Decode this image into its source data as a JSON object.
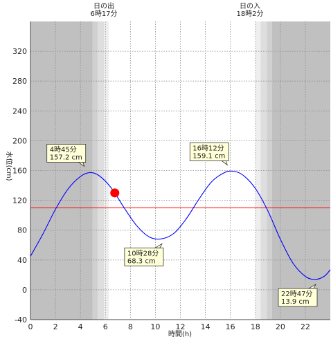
{
  "chart_data": {
    "type": "line",
    "xlabel": "時間(h)",
    "ylabel": "水位(cm)",
    "xlim": [
      0,
      24
    ],
    "ylim": [
      -40,
      360
    ],
    "x_ticks": [
      0,
      2,
      4,
      6,
      8,
      10,
      12,
      14,
      16,
      18,
      20,
      22
    ],
    "y_ticks": [
      -40,
      0,
      40,
      80,
      120,
      160,
      200,
      240,
      280,
      320
    ],
    "grid": true,
    "series": [
      {
        "color": "#0000ff",
        "x": [
          0,
          1,
          2,
          3,
          4,
          4.75,
          5.5,
          6.5,
          7.5,
          8.5,
          9.5,
          10.47,
          11.5,
          12.5,
          13.5,
          14.5,
          15.5,
          16.2,
          17,
          18,
          19,
          20,
          21,
          22,
          22.78,
          23.5,
          24
        ],
        "y": [
          45,
          75,
          108,
          135,
          152,
          157.2,
          153,
          136,
          110,
          86,
          71,
          68.3,
          76,
          96,
          122,
          145,
          157,
          159.1,
          154,
          136,
          106,
          68,
          36,
          18,
          13.9,
          18,
          27
        ]
      }
    ],
    "reference_line": {
      "y": 110,
      "color": "#ff0000"
    },
    "current_point": {
      "x": 6.75,
      "y": 130,
      "color": "#ff0000"
    },
    "sunrise": {
      "label_line1": "日の出",
      "label_line2": "6時17分",
      "x": 6.28
    },
    "sunset": {
      "label_line1": "日の入",
      "label_line2": "18時2分",
      "x": 18.03
    },
    "night_color": "#c0c0c0",
    "twilight_color": "#dedede",
    "annotations": [
      {
        "time": "4時45分",
        "value": "157.2 cm",
        "x": 4.75,
        "y": 157.2
      },
      {
        "time": "10時28分",
        "value": "68.3 cm",
        "x": 10.47,
        "y": 68.3
      },
      {
        "time": "16時12分",
        "value": "159.1 cm",
        "x": 16.2,
        "y": 159.1
      },
      {
        "time": "22時47分",
        "value": "13.9 cm",
        "x": 22.78,
        "y": 13.9
      }
    ]
  }
}
